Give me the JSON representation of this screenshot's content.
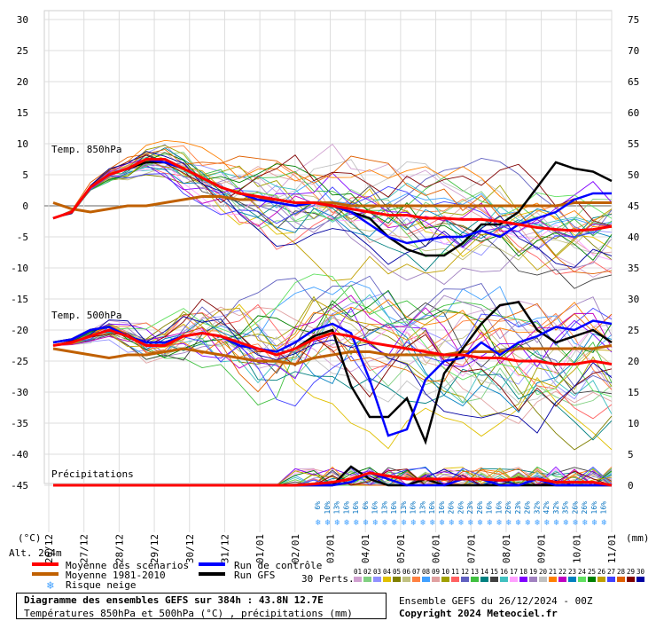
{
  "chart_data": {
    "type": "line",
    "title": "Diagramme des ensembles GEFS sur 384h : 43.8N 12.7E",
    "subtitle": "Températures 850hPa et 500hPa (°C) , précipitations (mm)",
    "left_axis": {
      "unit_label": "(°C)",
      "ticks": [
        30,
        25,
        20,
        15,
        10,
        5,
        0,
        -5,
        -10,
        -15,
        -20,
        -25,
        -30,
        -35,
        -40,
        -45
      ],
      "range": [
        -45,
        30
      ]
    },
    "right_axis": {
      "unit_label": "(mm)",
      "ticks": [
        75,
        70,
        65,
        60,
        55,
        50,
        45,
        40,
        35,
        30,
        25,
        20,
        15,
        10,
        5,
        0
      ],
      "range": [
        0,
        75
      ]
    },
    "x_labels": [
      "26/12",
      "27/12",
      "28/12",
      "29/12",
      "30/12",
      "31/12",
      "01/01",
      "02/01",
      "03/01",
      "04/01",
      "05/01",
      "06/01",
      "07/01",
      "08/01",
      "09/01",
      "10/01",
      "11/01"
    ],
    "panel_labels": {
      "t850": "Temp. 850hPa",
      "t500": "Temp. 500hPa",
      "precip": "Précipitations"
    },
    "altitude_label": "Alt. 264m",
    "snow_risk_percent": [
      "6%",
      "10%",
      "13%",
      "16%",
      "16%",
      "6%",
      "16%",
      "13%",
      "16%",
      "13%",
      "16%",
      "13%",
      "16%",
      "16%",
      "26%",
      "26%",
      "23%",
      "26%",
      "16%",
      "16%",
      "26%",
      "23%",
      "26%",
      "32%",
      "42%",
      "32%",
      "35%",
      "26%",
      "26%",
      "16%",
      "16%"
    ],
    "series": [
      {
        "name": "Moyenne des scénarios",
        "color": "#ff0000",
        "t850": [
          -2,
          -1,
          3,
          5,
          6,
          7.5,
          7.5,
          6,
          4.5,
          3,
          2,
          1.5,
          1,
          0.5,
          0.5,
          0,
          -0.5,
          -1,
          -1.5,
          -1.5,
          -2,
          -2,
          -2.2,
          -2.2,
          -2.5,
          -3,
          -3.5,
          -3.8,
          -4,
          -3.8,
          -3.3
        ],
        "t500": [
          -22.5,
          -22,
          -21,
          -20,
          -21,
          -22.5,
          -22.5,
          -21,
          -20.5,
          -21,
          -22,
          -23,
          -24,
          -23,
          -21.5,
          -20.5,
          -21,
          -22,
          -22.5,
          -23,
          -23.5,
          -24,
          -24,
          -24.5,
          -24.5,
          -25,
          -25,
          -25.5,
          -25.5,
          -25,
          -25.5
        ],
        "precip": [
          0,
          0,
          0,
          0,
          0,
          0,
          0,
          0,
          0,
          0,
          0,
          0,
          0,
          0,
          0.2,
          0.5,
          1,
          2,
          1.5,
          1,
          1,
          1,
          1,
          1,
          0.8,
          1,
          1,
          0.5,
          0.5,
          0.5,
          0
        ]
      },
      {
        "name": "Moyenne 1981-2010",
        "color": "#c06000",
        "t850": [
          0.5,
          -0.5,
          -1,
          -0.5,
          0,
          0,
          0.5,
          1,
          1.5,
          1.5,
          1,
          1,
          1,
          0.5,
          0.5,
          0.5,
          0,
          0,
          0,
          0,
          0,
          0,
          0,
          0,
          0,
          0,
          0,
          0,
          0.5,
          0.5,
          0.5
        ],
        "t500": [
          -23,
          -23.5,
          -24,
          -24.5,
          -24,
          -24,
          -23.5,
          -23,
          -23.5,
          -24,
          -24.5,
          -25,
          -25,
          -25.5,
          -24.5,
          -24,
          -23.5,
          -23.5,
          -24,
          -24,
          -24,
          -24,
          -23.5,
          -23.5,
          -23.5,
          -23,
          -23,
          -23,
          -23,
          -23,
          -22.5
        ]
      },
      {
        "name": "Run de contrôle",
        "color": "#0000ff",
        "t850": [
          -2,
          -1,
          3,
          5,
          6,
          7.5,
          7,
          6,
          4.5,
          3,
          2,
          1,
          0.5,
          0,
          0.5,
          0,
          -1,
          -3,
          -5,
          -6,
          -5.5,
          -5,
          -5,
          -4,
          -5,
          -3,
          -2,
          -1,
          1,
          2,
          2
        ],
        "t500": [
          -22,
          -21.5,
          -20,
          -19.5,
          -21,
          -22,
          -22,
          -21,
          -20.5,
          -21,
          -22.5,
          -23,
          -23.5,
          -22,
          -20,
          -19,
          -20.5,
          -28,
          -37,
          -36,
          -28,
          -25,
          -24.5,
          -22,
          -24,
          -22,
          -21,
          -19.5,
          -20,
          -18.5,
          -19
        ],
        "precip": [
          0,
          0,
          0,
          0,
          0,
          0,
          0,
          0,
          0,
          0,
          0,
          0,
          0,
          0,
          0,
          0,
          0.5,
          2,
          1,
          0,
          0,
          0,
          1,
          1,
          0,
          0,
          1,
          0,
          0,
          0,
          0
        ]
      },
      {
        "name": "Run GFS",
        "color": "#000000",
        "t850": [
          -2,
          -1,
          3,
          5,
          6,
          7,
          7,
          6,
          4.5,
          3,
          2,
          1.5,
          1,
          0.5,
          0.5,
          0,
          -1,
          -2,
          -5,
          -7,
          -8,
          -8,
          -6,
          -3,
          -3,
          -1,
          3,
          7,
          6,
          5.5,
          4
        ],
        "t500": [
          -22,
          -21.5,
          -20,
          -19.5,
          -21,
          -22,
          -22,
          -21,
          -20.5,
          -21,
          -22.5,
          -23,
          -24,
          -23,
          -21,
          -20,
          -29,
          -34,
          -34,
          -31,
          -38,
          -27,
          -23,
          -19,
          -16,
          -15.5,
          -20,
          -22,
          -21,
          -20,
          -22
        ],
        "precip": [
          0,
          0,
          0,
          0,
          0,
          0,
          0,
          0,
          0,
          0,
          0,
          0,
          0,
          0,
          0,
          0,
          3,
          1,
          0,
          0,
          1,
          0,
          0,
          0,
          0,
          0,
          0,
          0,
          0,
          0,
          0
        ]
      }
    ],
    "perturbations_count": 30,
    "perturbations": {
      "label": "30 Perts.",
      "ids": [
        "01",
        "02",
        "03",
        "04",
        "05",
        "06",
        "07",
        "08",
        "09",
        "10",
        "11",
        "12",
        "13",
        "14",
        "15",
        "16",
        "17",
        "18",
        "19",
        "20",
        "21",
        "22",
        "23",
        "24",
        "25",
        "26",
        "27",
        "28",
        "29",
        "30"
      ],
      "colors": [
        "#d0a0d0",
        "#80d080",
        "#9090ff",
        "#e0c000",
        "#808000",
        "#c0c080",
        "#ff8040",
        "#40a0ff",
        "#e0a0a0",
        "#a0a000",
        "#ff6060",
        "#6060c0",
        "#40c040",
        "#008080",
        "#404040",
        "#40c0c0",
        "#ffa0ff",
        "#8000ff",
        "#a080c0",
        "#c0c0c0",
        "#ff8000",
        "#c000c0",
        "#0080c0",
        "#60e060",
        "#008000",
        "#c0a000",
        "#4040ff",
        "#e06000",
        "#800000",
        "#0000a0"
      ]
    }
  },
  "legend": [
    {
      "label": "Moyenne des scénarios",
      "color": "#ff0000"
    },
    {
      "label": "Run de contrôle",
      "color": "#0000ff"
    },
    {
      "label": "Moyenne 1981-2010",
      "color": "#c06000"
    },
    {
      "label": "Run GFS",
      "color": "#000000"
    },
    {
      "label": "Risque neige",
      "color": "#40a0ff",
      "icon": "snowflake-icon"
    }
  ],
  "footer": {
    "title": "Diagramme des ensembles GEFS sur 384h : 43.8N 12.7E",
    "subtitle": "Températures 850hPa et 500hPa (°C) , précipitations (mm)",
    "run_info": "Ensemble GEFS du 26/12/2024 - 00Z",
    "copyright": "Copyright 2024 Meteociel.fr"
  }
}
